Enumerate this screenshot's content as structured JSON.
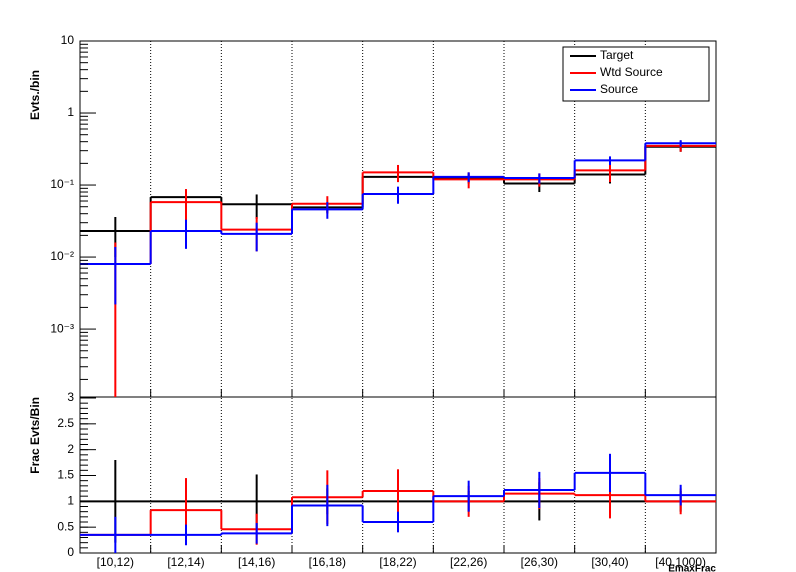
{
  "chart_data": [
    {
      "type": "step",
      "ylabel": "Evts./bin",
      "log_y": true,
      "grid_x": true,
      "legend": "top-right",
      "ylim": [
        0.000114,
        10
      ],
      "yticks": [
        {
          "value": 0.001,
          "label": "10⁻³"
        },
        {
          "value": 0.01,
          "label": "10⁻²"
        },
        {
          "value": 0.1,
          "label": "10⁻¹"
        },
        1,
        10
      ],
      "series": [
        {
          "name": "Target",
          "color": "#000000",
          "values": [
            0.023,
            0.068,
            0.054,
            0.049,
            0.13,
            0.125,
            0.105,
            0.14,
            0.34
          ],
          "errors": [
            0.013,
            0.01,
            0.02,
            0.008,
            0.02,
            0.02,
            0.025,
            0.035,
            0.05
          ]
        },
        {
          "name": "Wtd Source",
          "color": "#ff0000",
          "values": [
            0.008,
            0.058,
            0.024,
            0.055,
            0.15,
            0.12,
            0.12,
            0.16,
            0.35
          ],
          "errors": [
            0.0079,
            0.03,
            0.012,
            0.015,
            0.04,
            0.03,
            0.025,
            0.05,
            0.06
          ]
        },
        {
          "name": "Source",
          "color": "#0000ff",
          "values": [
            0.008,
            0.023,
            0.021,
            0.046,
            0.075,
            0.13,
            0.125,
            0.22,
            0.38
          ],
          "errors": [
            0.0058,
            0.01,
            0.009,
            0.012,
            0.02,
            0.02,
            0.02,
            0.03,
            0.04
          ]
        }
      ]
    },
    {
      "type": "step",
      "ylabel": "Frac Evts/Bin",
      "xlabel": "EmaxFrac",
      "grid_x": true,
      "categories": [
        "[10,12)",
        "[12,14)",
        "[14,16)",
        "[16,18)",
        "[18,22)",
        "[22,26)",
        "[26,30)",
        "[30,40)",
        "[40,1000)"
      ],
      "ylim": [
        0,
        3
      ],
      "yticks": [
        0,
        0.5,
        1,
        1.5,
        2,
        2.5,
        3
      ],
      "series": [
        {
          "name": "Target",
          "color": "#000000",
          "values": [
            1,
            1,
            1,
            1,
            1,
            1,
            1,
            1,
            1
          ],
          "errors": [
            0.8,
            0.2,
            0.52,
            0.25,
            0.2,
            0.2,
            0.37,
            0.3,
            0.2
          ]
        },
        {
          "name": "Wtd Source",
          "color": "#ff0000",
          "values": [
            0.35,
            0.83,
            0.46,
            1.08,
            1.2,
            1.0,
            1.15,
            1.12,
            1.0
          ],
          "errors": [
            0,
            0.62,
            0.3,
            0.52,
            0.42,
            0.3,
            0.3,
            0.45,
            0.25
          ]
        },
        {
          "name": "Source",
          "color": "#0000ff",
          "values": [
            0.35,
            0.35,
            0.38,
            0.92,
            0.6,
            1.1,
            1.22,
            1.55,
            1.12
          ],
          "errors": [
            0.35,
            0.2,
            0.2,
            0.4,
            0.2,
            0.3,
            0.35,
            0.37,
            0.2
          ]
        }
      ]
    }
  ]
}
